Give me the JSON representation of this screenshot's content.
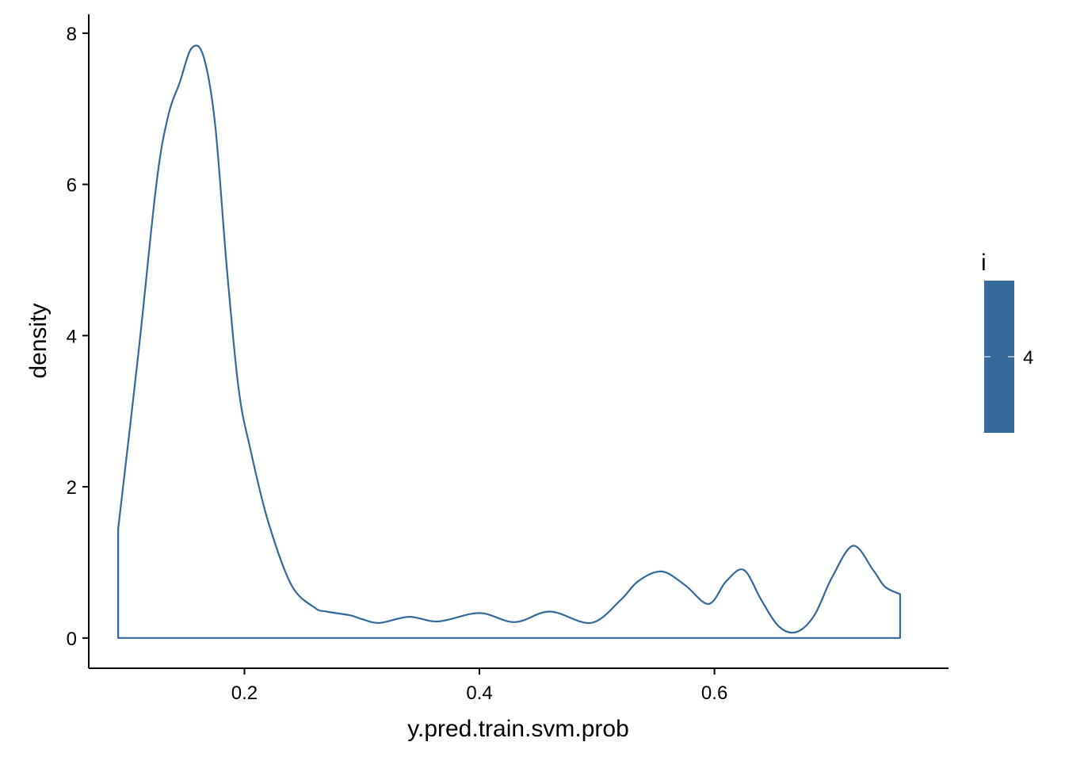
{
  "chart_data": {
    "type": "area",
    "xlabel": "y.pred.train.svm.prob",
    "ylabel": "density",
    "xlim": [
      0.0675,
      0.7992
    ],
    "ylim": [
      -0.4,
      8.25
    ],
    "x_ticks": [
      {
        "value": 0.2,
        "label": "0.2"
      },
      {
        "value": 0.4,
        "label": "0.4"
      },
      {
        "value": 0.6,
        "label": "0.6"
      }
    ],
    "y_ticks": [
      {
        "value": 0,
        "label": "0"
      },
      {
        "value": 2,
        "label": "2"
      },
      {
        "value": 4,
        "label": "4"
      },
      {
        "value": 6,
        "label": "6"
      },
      {
        "value": 8,
        "label": "8"
      }
    ],
    "grid": false,
    "legend": {
      "title": "i",
      "label": "4",
      "placement": "right"
    },
    "colors": {
      "line": "#35699A",
      "legend_fill": "#35699A",
      "axis": "#000000"
    },
    "series": [
      {
        "x": [
          0.0925,
          0.11,
          0.125,
          0.135,
          0.145,
          0.155,
          0.165,
          0.175,
          0.185,
          0.195,
          0.205,
          0.22,
          0.24,
          0.26,
          0.27,
          0.29,
          0.3,
          0.315,
          0.34,
          0.365,
          0.4,
          0.43,
          0.46,
          0.495,
          0.52,
          0.535,
          0.555,
          0.575,
          0.595,
          0.61,
          0.625,
          0.64,
          0.655,
          0.67,
          0.685,
          0.7,
          0.718,
          0.735,
          0.745,
          0.758
        ],
        "y": [
          1.44,
          3.8,
          6.0,
          6.9,
          7.35,
          7.8,
          7.7,
          6.8,
          4.9,
          3.3,
          2.5,
          1.55,
          0.7,
          0.4,
          0.35,
          0.3,
          0.25,
          0.2,
          0.28,
          0.22,
          0.33,
          0.21,
          0.35,
          0.2,
          0.5,
          0.75,
          0.88,
          0.7,
          0.45,
          0.75,
          0.9,
          0.5,
          0.15,
          0.08,
          0.3,
          0.8,
          1.22,
          0.9,
          0.68,
          0.58
        ]
      }
    ]
  }
}
